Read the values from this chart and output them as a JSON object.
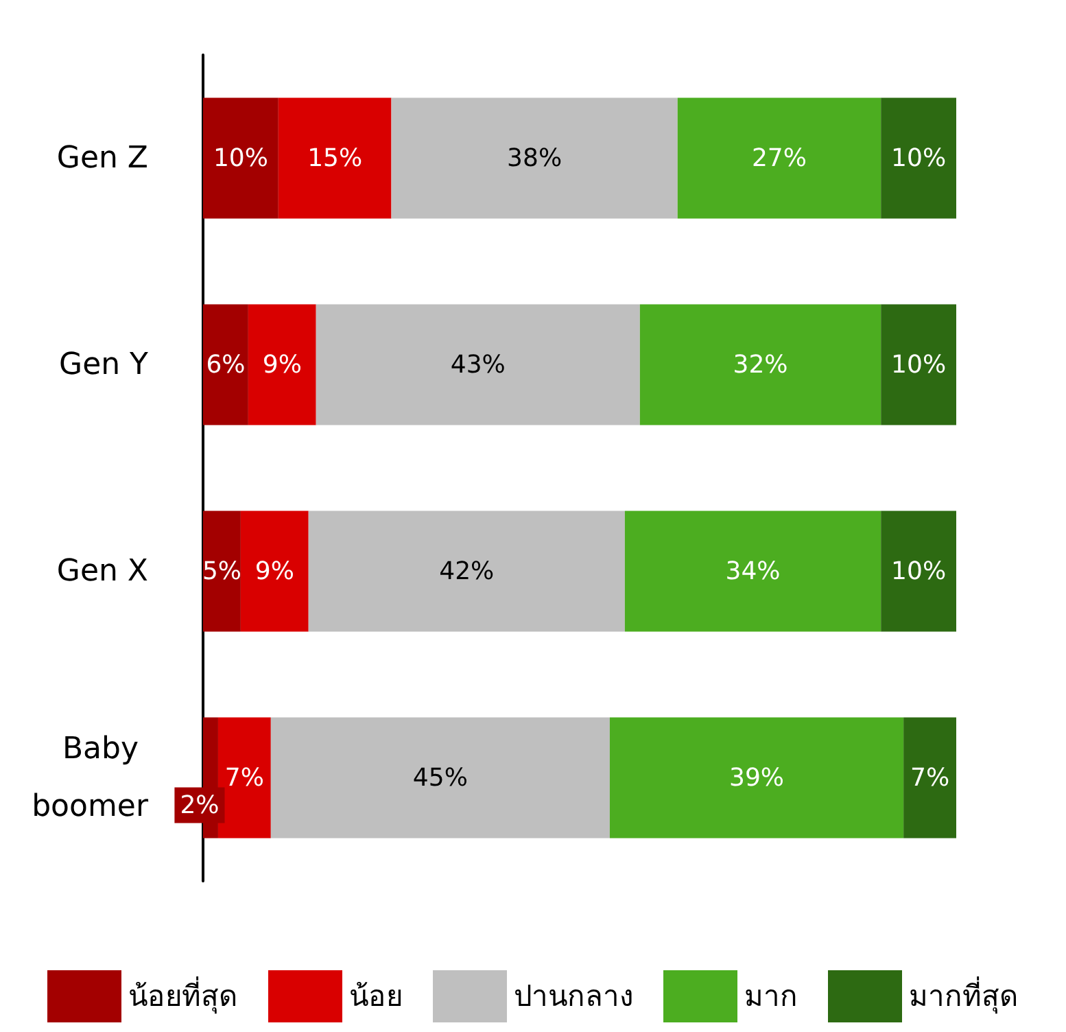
{
  "chart_data": {
    "type": "bar",
    "orientation": "horizontal",
    "stacked": true,
    "categories": [
      "Gen Z",
      "Gen Y",
      "Gen X",
      "Baby boomer"
    ],
    "legend": "bottom",
    "series": [
      {
        "name": "น้อยที่สุด",
        "color": "#a30000",
        "values": [
          10,
          6,
          5,
          2
        ],
        "value_labels": [
          "10%",
          "6%",
          "5%",
          "2%"
        ]
      },
      {
        "name": "น้อย",
        "color": "#d90000",
        "values": [
          15,
          9,
          9,
          7
        ],
        "value_labels": [
          "15%",
          "9%",
          "9%",
          "7%"
        ]
      },
      {
        "name": "ปานกลาง",
        "color": "#bfbfbf",
        "values": [
          38,
          43,
          42,
          45
        ],
        "value_labels": [
          "38%",
          "43%",
          "42%",
          "45%"
        ]
      },
      {
        "name": "มาก",
        "color": "#4cad20",
        "values": [
          27,
          32,
          34,
          39
        ],
        "value_labels": [
          "27%",
          "32%",
          "34%",
          "39%"
        ]
      },
      {
        "name": "มากที่สุด",
        "color": "#2d6a12",
        "values": [
          10,
          10,
          10,
          7
        ],
        "value_labels": [
          "10%",
          "10%",
          "10%",
          "7%"
        ]
      }
    ]
  }
}
